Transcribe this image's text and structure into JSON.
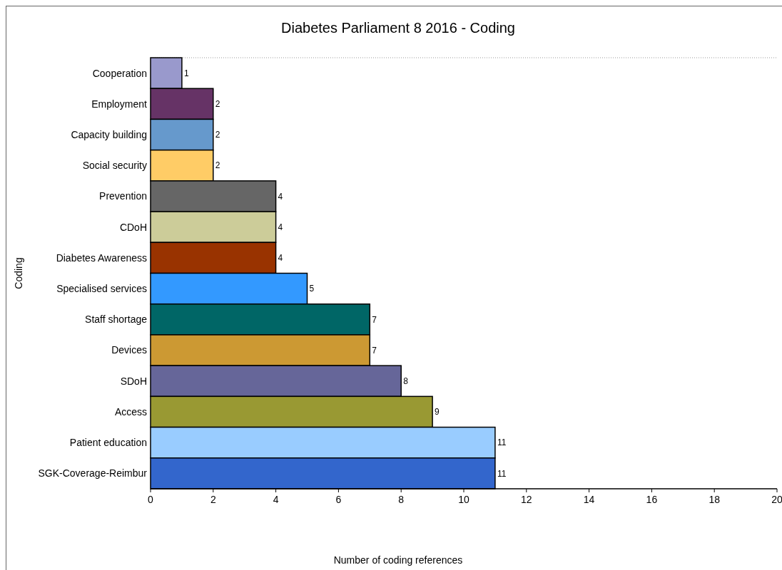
{
  "chart_data": {
    "type": "bar",
    "orientation": "horizontal",
    "title": "Diabetes Parliament 8 2016 - Coding",
    "xlabel": "Number of coding references",
    "ylabel": "Coding",
    "categories": [
      "Cooperation",
      "Employment",
      "Capacity building",
      "Social security",
      "Prevention",
      "CDoH",
      "Diabetes Awareness",
      "Specialised services",
      "Staff shortage",
      "Devices",
      "SDoH",
      "Access",
      "Patient education",
      "SGK-Coverage-Reimbur"
    ],
    "values": [
      1,
      2,
      2,
      2,
      4,
      4,
      4,
      5,
      7,
      7,
      8,
      9,
      11,
      11
    ],
    "colors": [
      "#9999cc",
      "#663366",
      "#6699cc",
      "#ffcc66",
      "#666666",
      "#cccc99",
      "#993300",
      "#3399ff",
      "#006666",
      "#cc9933",
      "#666699",
      "#999933",
      "#99ccff",
      "#3366cc"
    ],
    "xlim": [
      0,
      20
    ],
    "xticks": [
      0,
      2,
      4,
      6,
      8,
      10,
      12,
      14,
      16,
      18,
      20
    ],
    "data_labels": true,
    "grid": false
  }
}
